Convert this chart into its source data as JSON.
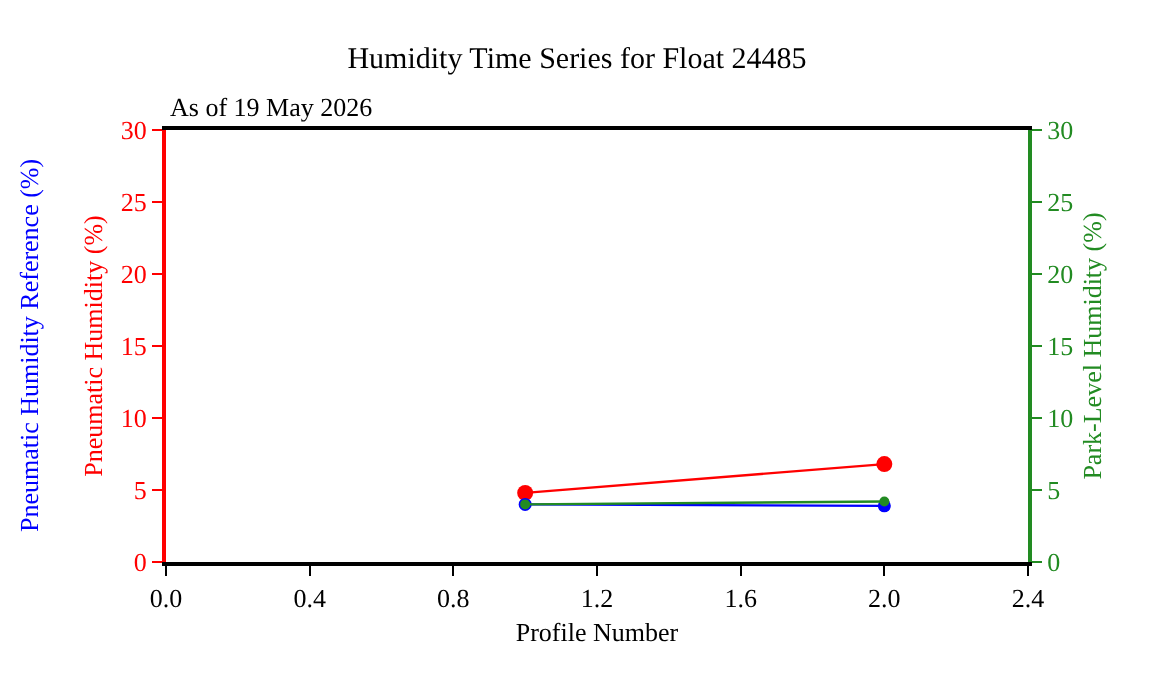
{
  "chart_data": {
    "type": "line",
    "title": "Humidity Time Series for Float 24485",
    "subtitle": "As of 19 May 2026",
    "xlabel": "Profile Number",
    "ylabel": "Pneumatic Humidity (%)",
    "y3label": "Pneumatic Humidity Reference (%)",
    "y2label": "Park-Level Humidity (%)",
    "x": [
      1,
      2
    ],
    "series": [
      {
        "color": "#ff0000",
        "values": [
          4.8,
          6.8
        ]
      },
      {
        "color": "#0000ff",
        "values": [
          4.0,
          3.9
        ]
      },
      {
        "color": "#228b22",
        "values": [
          4.0,
          4.2
        ],
        "axis": "y2"
      }
    ],
    "xlim": [
      0,
      2.4
    ],
    "xticks": [
      {
        "value": 0,
        "label": "0.0"
      },
      0.4,
      0.8,
      1.2,
      1.6,
      {
        "value": 2,
        "label": "2.0"
      },
      2.4
    ],
    "ylim": [
      0,
      30
    ],
    "yticks": [
      0,
      5,
      10,
      15,
      20,
      25,
      30
    ],
    "y2lim": [
      0,
      30
    ],
    "y2ticks": [
      0,
      5,
      10,
      15,
      20,
      25,
      30
    ],
    "marker": "circle",
    "line_style": "solid",
    "grid": false
  }
}
